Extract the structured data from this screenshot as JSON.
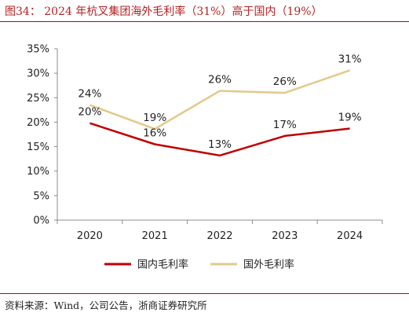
{
  "title": "图34：  2024 年杭叉集团海外毛利率（31%）高于国内（19%）",
  "source": "资料来源：Wind，公司公告，浙商证券研究所",
  "chart_data": {
    "type": "line",
    "categories": [
      "2020",
      "2021",
      "2022",
      "2023",
      "2024"
    ],
    "ylim": [
      0,
      35
    ],
    "yticks": [
      "0%",
      "5%",
      "10%",
      "15%",
      "20%",
      "25%",
      "30%",
      "35%"
    ],
    "grid": false,
    "legend_position": "bottom",
    "series": [
      {
        "name": "国内毛利率",
        "color": "#c00000",
        "values": [
          19.8,
          15.5,
          13.2,
          17.2,
          18.7
        ],
        "labels": [
          "20%",
          "16%",
          "13%",
          "17%",
          "19%"
        ]
      },
      {
        "name": "国外毛利率",
        "color": "#e3c98a",
        "values": [
          23.5,
          18.6,
          26.4,
          26.0,
          30.6
        ],
        "labels": [
          "24%",
          "19%",
          "26%",
          "26%",
          "31%"
        ]
      }
    ]
  }
}
